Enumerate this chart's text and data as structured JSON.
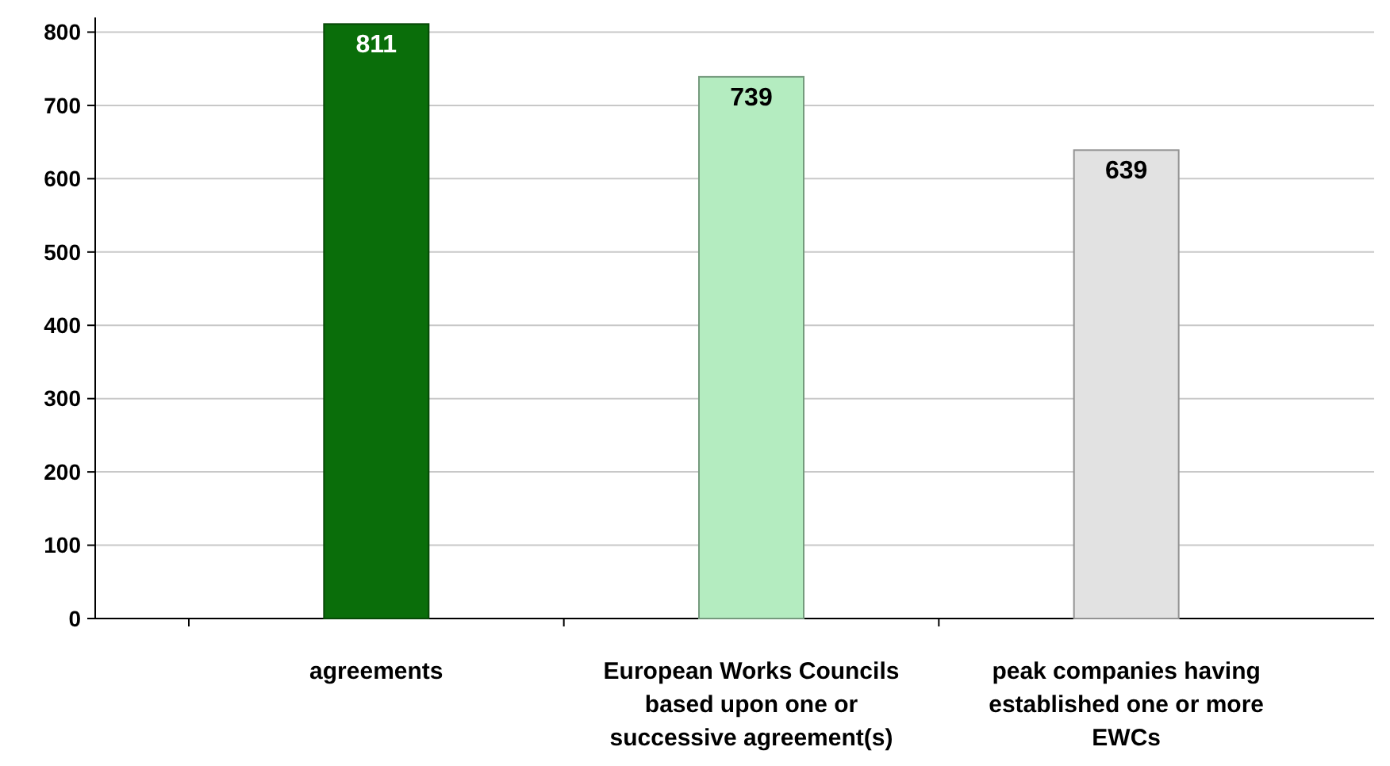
{
  "chart_data": {
    "type": "bar",
    "categories": [
      "agreements",
      "European Works Councils based upon one or successive agreement(s)",
      "peak companies having established one or more EWCs"
    ],
    "values": [
      811,
      739,
      639
    ],
    "colors": [
      "#0a6e0a",
      "#b4ecc0",
      "#e2e2e2"
    ],
    "ylim": [
      0,
      820
    ],
    "yticks": [
      0,
      100,
      200,
      300,
      400,
      500,
      600,
      700,
      800
    ],
    "grid": "y",
    "data_labels": true
  }
}
